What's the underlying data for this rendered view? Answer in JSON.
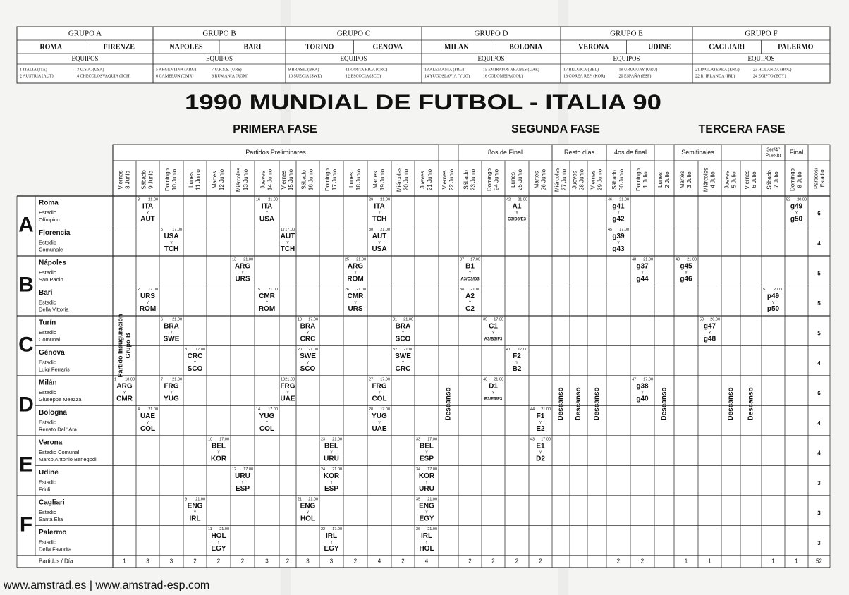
{
  "groups": [
    {
      "title": "GRUPO A",
      "cities": [
        "ROMA",
        "FIRENZE"
      ],
      "equipos": "EQUIPOS",
      "teams": [
        "1  ITALIA (ITA)",
        "2  AUSTRIA (AUT)",
        "3  U.S.A. (USA)",
        "4  CHECOLOSVAQUIA (TCH)"
      ]
    },
    {
      "title": "GRUPO B",
      "cities": [
        "NAPOLES",
        "BARI"
      ],
      "equipos": "EQUIPOS",
      "teams": [
        "5  ARGENTINA (ARG)",
        "6  CAMERUN (CMR)",
        "7  U.R.S.S. (URS)",
        "8  RUMANIA (ROM)"
      ]
    },
    {
      "title": "GRUPO C",
      "cities": [
        "TORINO",
        "GENOVA"
      ],
      "equipos": "EQUIPOS",
      "teams": [
        "9  BRASIL (BRA)",
        "10  SUECIA (SWE)",
        "11  COSTA RICA (CRC)",
        "12  ESCOCIA (SCO)"
      ]
    },
    {
      "title": "GRUPO D",
      "cities": [
        "MILAN",
        "BOLONIA"
      ],
      "equipos": "EQUIPOS",
      "teams": [
        "13  ALEMANIA (FRG)",
        "14  YUGOSLAVIA (YUG)",
        "15  EMIRATOS ARABES (UAE)",
        "16  COLOMBIA (COL)"
      ]
    },
    {
      "title": "GRUPO E",
      "cities": [
        "VERONA",
        "UDINE"
      ],
      "equipos": "EQUIPOS",
      "teams": [
        "17 BELGICA (BEL)",
        "18 COREA REP. (KOR)",
        "19  URUGUAY (URU)",
        "20  ESPAÑA (ESP)"
      ]
    },
    {
      "title": "GRUPO F",
      "cities": [
        "CAGLIARI",
        "PALERMO"
      ],
      "equipos": "EQUIPOS",
      "teams": [
        "21  INGLATERRA (ENG)",
        "22  R. IRLANDA (IRL)",
        "23  HOLANDA (HOL)",
        "24  EGIPTO (EGY)"
      ]
    }
  ],
  "title": "1990 MUNDIAL DE FUTBOL - ITALIA 90",
  "phases": [
    "PRIMERA FASE",
    "SEGUNDA FASE",
    "TERCERA FASE"
  ],
  "schedule": {
    "stages": [
      {
        "lines": [
          "Partidos Preliminares"
        ],
        "first": "8 Junio",
        "last": "21 Junio"
      },
      {
        "lines": [
          "8os de Final"
        ],
        "first": "23 Junio",
        "last": "26 Junio"
      },
      {
        "lines": [
          "Resto días"
        ],
        "first": "27 Junio",
        "last": "29 Junio"
      },
      {
        "lines": [
          "4os de final"
        ],
        "first": "30 Junio",
        "last": "1 Julio"
      },
      {
        "lines": [
          "Semifinales"
        ],
        "first": "3 Julio",
        "last": "4 Julio"
      },
      {
        "lines": [
          "3er/4º",
          "Puesto"
        ],
        "first": "7 Julio",
        "last": "7 Julio"
      },
      {
        "lines": [
          "Final"
        ],
        "first": "8 Julio",
        "last": "8 Julio"
      }
    ],
    "days": [
      {
        "weekday": "Viernes",
        "date": "8 Junio",
        "matches": 1
      },
      {
        "weekday": "Sábado",
        "date": "9 Junio",
        "matches": 3
      },
      {
        "weekday": "Domingo",
        "date": "10 Junio",
        "matches": 3
      },
      {
        "weekday": "Lunes",
        "date": "11 Junio",
        "matches": 2
      },
      {
        "weekday": "Martes",
        "date": "12 Junio",
        "matches": 2
      },
      {
        "weekday": "Miércoles",
        "date": "13 Junio",
        "matches": 2
      },
      {
        "weekday": "Jueves",
        "date": "14 Junio",
        "matches": 3
      },
      {
        "weekday": "Viernes",
        "date": "15 Junio",
        "matches": 2
      },
      {
        "weekday": "Sábado",
        "date": "16 Junio",
        "matches": 3
      },
      {
        "weekday": "Domingo",
        "date": "17 Junio",
        "matches": 3
      },
      {
        "weekday": "Lunes",
        "date": "18 Junio",
        "matches": 2
      },
      {
        "weekday": "Martes",
        "date": "19 Junio",
        "matches": 4
      },
      {
        "weekday": "Miércoles",
        "date": "20 Junio",
        "matches": 2
      },
      {
        "weekday": "Jueves",
        "date": "21 Junio",
        "matches": 4
      },
      {
        "weekday": "Viernes",
        "date": "22 Junio",
        "matches": null,
        "descanso": true
      },
      {
        "weekday": "Sábado",
        "date": "23 Junio",
        "matches": 2
      },
      {
        "weekday": "Domingo",
        "date": "24 Junio",
        "matches": 2
      },
      {
        "weekday": "Lunes",
        "date": "25 Junio",
        "matches": 2
      },
      {
        "weekday": "Martes",
        "date": "26 Junio",
        "matches": 2
      },
      {
        "weekday": "Miércoles",
        "date": "27 Junio",
        "matches": null,
        "descanso": true
      },
      {
        "weekday": "Jueves",
        "date": "28 Junio",
        "matches": null,
        "descanso": true
      },
      {
        "weekday": "Viernes",
        "date": "29 Junio",
        "matches": null,
        "descanso": true
      },
      {
        "weekday": "Sábado",
        "date": "30 Junio",
        "matches": 2
      },
      {
        "weekday": "Domingo",
        "date": "1 Julio",
        "matches": 2
      },
      {
        "weekday": "Lunes",
        "date": "2 Julio",
        "matches": null,
        "descanso": true
      },
      {
        "weekday": "Martes",
        "date": "3 Julio",
        "matches": 1
      },
      {
        "weekday": "Miércoles",
        "date": "4 Julio",
        "matches": 1
      },
      {
        "weekday": "Jueves",
        "date": "5 Julio",
        "matches": null,
        "descanso": true
      },
      {
        "weekday": "Viernes",
        "date": "6 Julio",
        "matches": null,
        "descanso": true
      },
      {
        "weekday": "Sábado",
        "date": "7 Julio",
        "matches": 1
      },
      {
        "weekday": "Domingo",
        "date": "8 Julio",
        "matches": 1
      }
    ],
    "total_header": [
      "Partidos/",
      "Estadio"
    ],
    "rest_label": "Descanso",
    "vs": "Y",
    "opening_note": [
      "Partido Inauguración",
      "Grupo B"
    ],
    "per_day_label": "Partidos / Día",
    "total": 52,
    "groups": [
      {
        "letter": "A",
        "venues": [
          {
            "city": "Roma",
            "stadium": [
              "Estadio",
              "Olímpico"
            ],
            "total": 6,
            "matches": [
              {
                "date": "9 Junio",
                "num": "3",
                "time": "21.00",
                "home": "ITA",
                "away": "AUT"
              },
              {
                "date": "14 Junio",
                "num": "16",
                "time": "21.00",
                "home": "ITA",
                "away": "USA"
              },
              {
                "date": "19 Junio",
                "num": "29",
                "time": "21.00",
                "home": "ITA",
                "away": "TCH"
              },
              {
                "date": "25 Junio",
                "num": "42",
                "time": "21.00",
                "home": "A1",
                "away": "C3/D3/E3"
              },
              {
                "date": "30 Junio",
                "num": "46",
                "time": "21.00",
                "home": "g41",
                "away": "g42"
              },
              {
                "date": "8 Julio",
                "num": "52",
                "time": "20.00",
                "home": "g49",
                "away": "g50"
              }
            ]
          },
          {
            "city": "Florencia",
            "stadium": [
              "Estadio",
              "Comunale"
            ],
            "total": 4,
            "matches": [
              {
                "date": "10 Junio",
                "num": "5",
                "time": "17.00",
                "home": "USA",
                "away": "TCH"
              },
              {
                "date": "15 Junio",
                "num": "17",
                "time": "17.00",
                "home": "AUT",
                "away": "TCH"
              },
              {
                "date": "19 Junio",
                "num": "30",
                "time": "21.00",
                "home": "AUT",
                "away": "USA"
              },
              {
                "date": "30 Junio",
                "num": "45",
                "time": "17.00",
                "home": "g39",
                "away": "g43"
              }
            ]
          }
        ]
      },
      {
        "letter": "B",
        "venues": [
          {
            "city": "Nápoles",
            "stadium": [
              "Estadio",
              "San Paolo"
            ],
            "total": 5,
            "matches": [
              {
                "date": "13 Junio",
                "num": "13",
                "time": "21.00",
                "home": "ARG",
                "away": "URS"
              },
              {
                "date": "18 Junio",
                "num": "25",
                "time": "21.00",
                "home": "ARG",
                "away": "ROM"
              },
              {
                "date": "23 Junio",
                "num": "37",
                "time": "17.00",
                "home": "B1",
                "away": "A3/C3/D3"
              },
              {
                "date": "1 Julio",
                "num": "48",
                "time": "21.00",
                "home": "g37",
                "away": "g44"
              },
              {
                "date": "3 Julio",
                "num": "49",
                "time": "21.00",
                "home": "g45",
                "away": "g46"
              }
            ]
          },
          {
            "city": "Bari",
            "stadium": [
              "Estadio",
              "Della Vittoria"
            ],
            "total": 5,
            "matches": [
              {
                "date": "9 Junio",
                "num": "2",
                "time": "17.00",
                "home": "URS",
                "away": "ROM"
              },
              {
                "date": "14 Junio",
                "num": "15",
                "time": "21.00",
                "home": "CMR",
                "away": "ROM"
              },
              {
                "date": "18 Junio",
                "num": "26",
                "time": "21.00",
                "home": "CMR",
                "away": "URS"
              },
              {
                "date": "23 Junio",
                "num": "38",
                "time": "21.00",
                "home": "A2",
                "away": "C2"
              },
              {
                "date": "7 Julio",
                "num": "51",
                "time": "20.00",
                "home": "p49",
                "away": "p50"
              }
            ]
          }
        ]
      },
      {
        "letter": "C",
        "venues": [
          {
            "city": "Turín",
            "stadium": [
              "Estadio",
              "Comunal"
            ],
            "total": 5,
            "matches": [
              {
                "date": "10 Junio",
                "num": "6",
                "time": "21.00",
                "home": "BRA",
                "away": "SWE"
              },
              {
                "date": "16 Junio",
                "num": "19",
                "time": "17.00",
                "home": "BRA",
                "away": "CRC"
              },
              {
                "date": "20 Junio",
                "num": "31",
                "time": "21.00",
                "home": "BRA",
                "away": "SCO"
              },
              {
                "date": "24 Junio",
                "num": "39",
                "time": "17.00",
                "home": "C1",
                "away": "A3/B3/F3"
              },
              {
                "date": "4 Julio",
                "num": "50",
                "time": "20.00",
                "home": "g47",
                "away": "g48"
              }
            ]
          },
          {
            "city": "Génova",
            "stadium": [
              "Estadio",
              "Luigi Ferraris"
            ],
            "total": 4,
            "matches": [
              {
                "date": "11 Junio",
                "num": "8",
                "time": "17.00",
                "home": "CRC",
                "away": "SCO"
              },
              {
                "date": "16 Junio",
                "num": "20",
                "time": "21.00",
                "home": "SWE",
                "away": "SCO"
              },
              {
                "date": "20 Junio",
                "num": "32",
                "time": "21.00",
                "home": "SWE",
                "away": "CRC"
              },
              {
                "date": "25 Junio",
                "num": "41",
                "time": "17.00",
                "home": "F2",
                "away": "B2"
              }
            ]
          }
        ]
      },
      {
        "letter": "D",
        "venues": [
          {
            "city": "Milán",
            "stadium": [
              "Estadio",
              "Giuseppe Meazza"
            ],
            "total": 6,
            "matches": [
              {
                "date": "8 Junio",
                "num": "1",
                "time": "18.00",
                "home": "ARG",
                "away": "CMR"
              },
              {
                "date": "10 Junio",
                "num": "7",
                "time": "21.00",
                "home": "FRG",
                "away": "YUG"
              },
              {
                "date": "15 Junio",
                "num": "18",
                "time": "21.00",
                "home": "FRG",
                "away": "UAE"
              },
              {
                "date": "19 Junio",
                "num": "27",
                "time": "17.00",
                "home": "FRG",
                "away": "COL"
              },
              {
                "date": "24 Junio",
                "num": "40",
                "time": "21.00",
                "home": "D1",
                "away": "B3/E3/F3"
              },
              {
                "date": "1 Julio",
                "num": "47",
                "time": "17.00",
                "home": "g38",
                "away": "g40"
              }
            ]
          },
          {
            "city": "Bologna",
            "stadium": [
              "Estadio",
              "Renato Dall' Ara"
            ],
            "total": 4,
            "matches": [
              {
                "date": "9 Junio",
                "num": "4",
                "time": "21.00",
                "home": "UAE",
                "away": "COL"
              },
              {
                "date": "14 Junio",
                "num": "14",
                "time": "17.00",
                "home": "YUG",
                "away": "COL"
              },
              {
                "date": "19 Junio",
                "num": "28",
                "time": "17.00",
                "home": "YUG",
                "away": "UAE"
              },
              {
                "date": "26 Junio",
                "num": "44",
                "time": "21.00",
                "home": "F1",
                "away": "E2"
              }
            ]
          }
        ]
      },
      {
        "letter": "E",
        "venues": [
          {
            "city": "Verona",
            "stadium": [
              "Estadio Comunal",
              "Marco Antonio Benegodi"
            ],
            "total": 4,
            "matches": [
              {
                "date": "12 Junio",
                "num": "10",
                "time": "17.00",
                "home": "BEL",
                "away": "KOR"
              },
              {
                "date": "17 Junio",
                "num": "23",
                "time": "21.00",
                "home": "BEL",
                "away": "URU"
              },
              {
                "date": "21 Junio",
                "num": "33",
                "time": "17.00",
                "home": "BEL",
                "away": "ESP"
              },
              {
                "date": "26 Junio",
                "num": "43",
                "time": "17.00",
                "home": "E1",
                "away": "D2"
              }
            ]
          },
          {
            "city": "Udine",
            "stadium": [
              "Estadio",
              "Friuli"
            ],
            "total": 3,
            "matches": [
              {
                "date": "13 Junio",
                "num": "12",
                "time": "17.00",
                "home": "URU",
                "away": "ESP"
              },
              {
                "date": "17 Junio",
                "num": "24",
                "time": "21.00",
                "home": "KOR",
                "away": "ESP"
              },
              {
                "date": "21 Junio",
                "num": "34",
                "time": "17.00",
                "home": "KOR",
                "away": "URU"
              }
            ]
          }
        ]
      },
      {
        "letter": "F",
        "venues": [
          {
            "city": "Cagliari",
            "stadium": [
              "Estadio",
              "Santa Elia"
            ],
            "total": 3,
            "matches": [
              {
                "date": "11 Junio",
                "num": "9",
                "time": "21.00",
                "home": "ENG",
                "away": "IRL"
              },
              {
                "date": "16 Junio",
                "num": "21",
                "time": "21.00",
                "home": "ENG",
                "away": "HOL"
              },
              {
                "date": "21 Junio",
                "num": "35",
                "time": "21.00",
                "home": "ENG",
                "away": "EGY"
              }
            ]
          },
          {
            "city": "Palermo",
            "stadium": [
              "Estadio",
              "Della Favorita"
            ],
            "total": 3,
            "matches": [
              {
                "date": "12 Junio",
                "num": "11",
                "time": "21.00",
                "home": "HOL",
                "away": "EGY"
              },
              {
                "date": "17 Junio",
                "num": "22",
                "time": "17.00",
                "home": "IRL",
                "away": "EGY"
              },
              {
                "date": "21 Junio",
                "num": "36",
                "time": "21.00",
                "home": "IRL",
                "away": "HOL"
              }
            ]
          }
        ]
      }
    ]
  },
  "footer": "www.amstrad.es | www.amstrad-esp.com"
}
